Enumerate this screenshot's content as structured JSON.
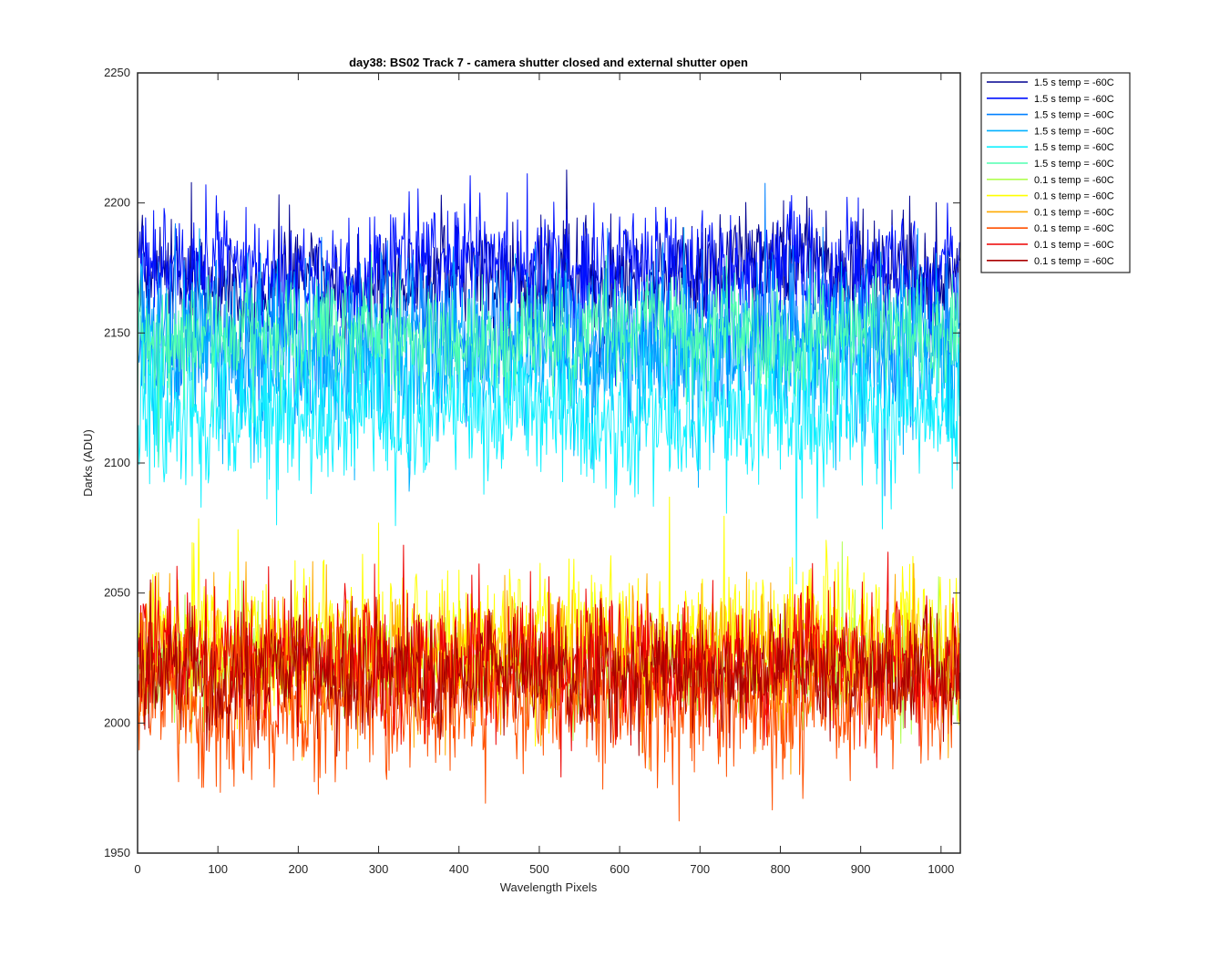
{
  "chart_data": {
    "type": "line",
    "title": "day38: BS02  Track 7 - camera shutter closed and external shutter open",
    "xlabel": "Wavelength Pixels",
    "ylabel": "Darks (ADU)",
    "xlim": [
      0,
      1024
    ],
    "ylim": [
      1950,
      2250
    ],
    "xticks": [
      0,
      100,
      200,
      300,
      400,
      500,
      600,
      700,
      800,
      900,
      1000
    ],
    "yticks": [
      1950,
      2000,
      2050,
      2100,
      2150,
      2200,
      2250
    ],
    "grid": false,
    "legend_position": "outside-top-right",
    "series": [
      {
        "name": "1.5 s temp = -60C",
        "color": "#00008f",
        "mean": 2173,
        "noise": 10
      },
      {
        "name": "1.5 s temp = -60C",
        "color": "#0010ff",
        "mean": 2175,
        "noise": 11
      },
      {
        "name": "1.5 s temp = -60C",
        "color": "#0080ff",
        "mean": 2150,
        "noise": 14
      },
      {
        "name": "1.5 s temp = -60C",
        "color": "#00b0ff",
        "mean": 2140,
        "noise": 15
      },
      {
        "name": "1.5 s temp = -60C",
        "color": "#10f0ff",
        "mean": 2118,
        "noise": 14
      },
      {
        "name": "1.5 s temp = -60C",
        "color": "#50ffb0",
        "mean": 2148,
        "noise": 10
      },
      {
        "name": "0.1 s temp = -60C",
        "color": "#b0ff50",
        "mean": 2022,
        "noise": 9
      },
      {
        "name": "0.1 s temp = -60C",
        "color": "#ffff00",
        "mean": 2032,
        "noise": 13
      },
      {
        "name": "0.1 s temp = -60C",
        "color": "#ffaa00",
        "mean": 2025,
        "noise": 12
      },
      {
        "name": "0.1 s temp = -60C",
        "color": "#ff5000",
        "mean": 2008,
        "noise": 12
      },
      {
        "name": "0.1 s temp = -60C",
        "color": "#ee0000",
        "mean": 2025,
        "noise": 12
      },
      {
        "name": "0.1 s temp = -60C",
        "color": "#aa0000",
        "mean": 2018,
        "noise": 10
      }
    ]
  }
}
